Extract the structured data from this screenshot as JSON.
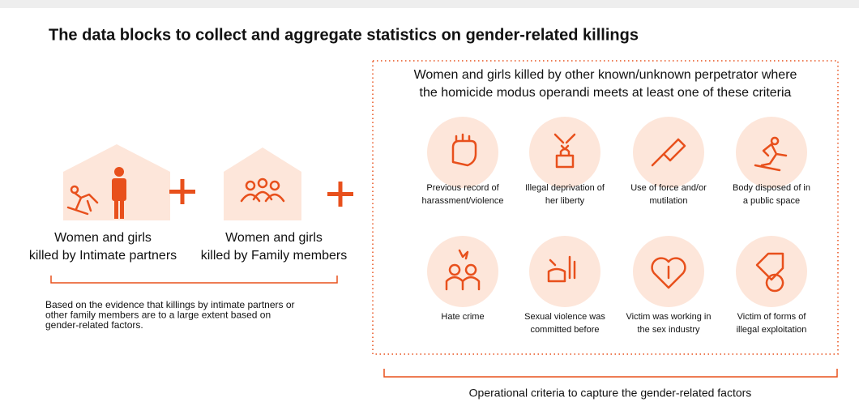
{
  "title": "The data blocks to collect and aggregate statistics on gender-related killings",
  "left_blocks": [
    {
      "lines": [
        "Women and girls",
        "killed by Intimate partners"
      ]
    },
    {
      "lines": [
        "Women and girls",
        "killed by Family members"
      ]
    }
  ],
  "left_note": {
    "lines": [
      "Based on the evidence that killings by intimate partners or",
      "other family members are to a large extent based on",
      "gender-related factors."
    ]
  },
  "right_heading": {
    "lines": [
      "Women and girls killed by other known/unknown perpetrator where",
      "the homicide modus operandi meets at least one of these criteria"
    ]
  },
  "criteria": [
    {
      "lines": [
        "Previous record of",
        "harassment/violence"
      ]
    },
    {
      "lines": [
        "Illegal deprivation of",
        "her liberty"
      ]
    },
    {
      "lines": [
        "Use of force and/or",
        "mutilation"
      ]
    },
    {
      "lines": [
        "Body disposed of  in",
        "a public space"
      ]
    },
    {
      "lines": [
        "Hate crime"
      ]
    },
    {
      "lines": [
        "Sexual violence was",
        "committed before"
      ]
    },
    {
      "lines": [
        "Victim was working in",
        "the sex industry"
      ]
    },
    {
      "lines": [
        "Victim of forms of",
        "illegal exploitation"
      ]
    }
  ],
  "right_caption": "Operational criteria to capture the gender-related factors"
}
